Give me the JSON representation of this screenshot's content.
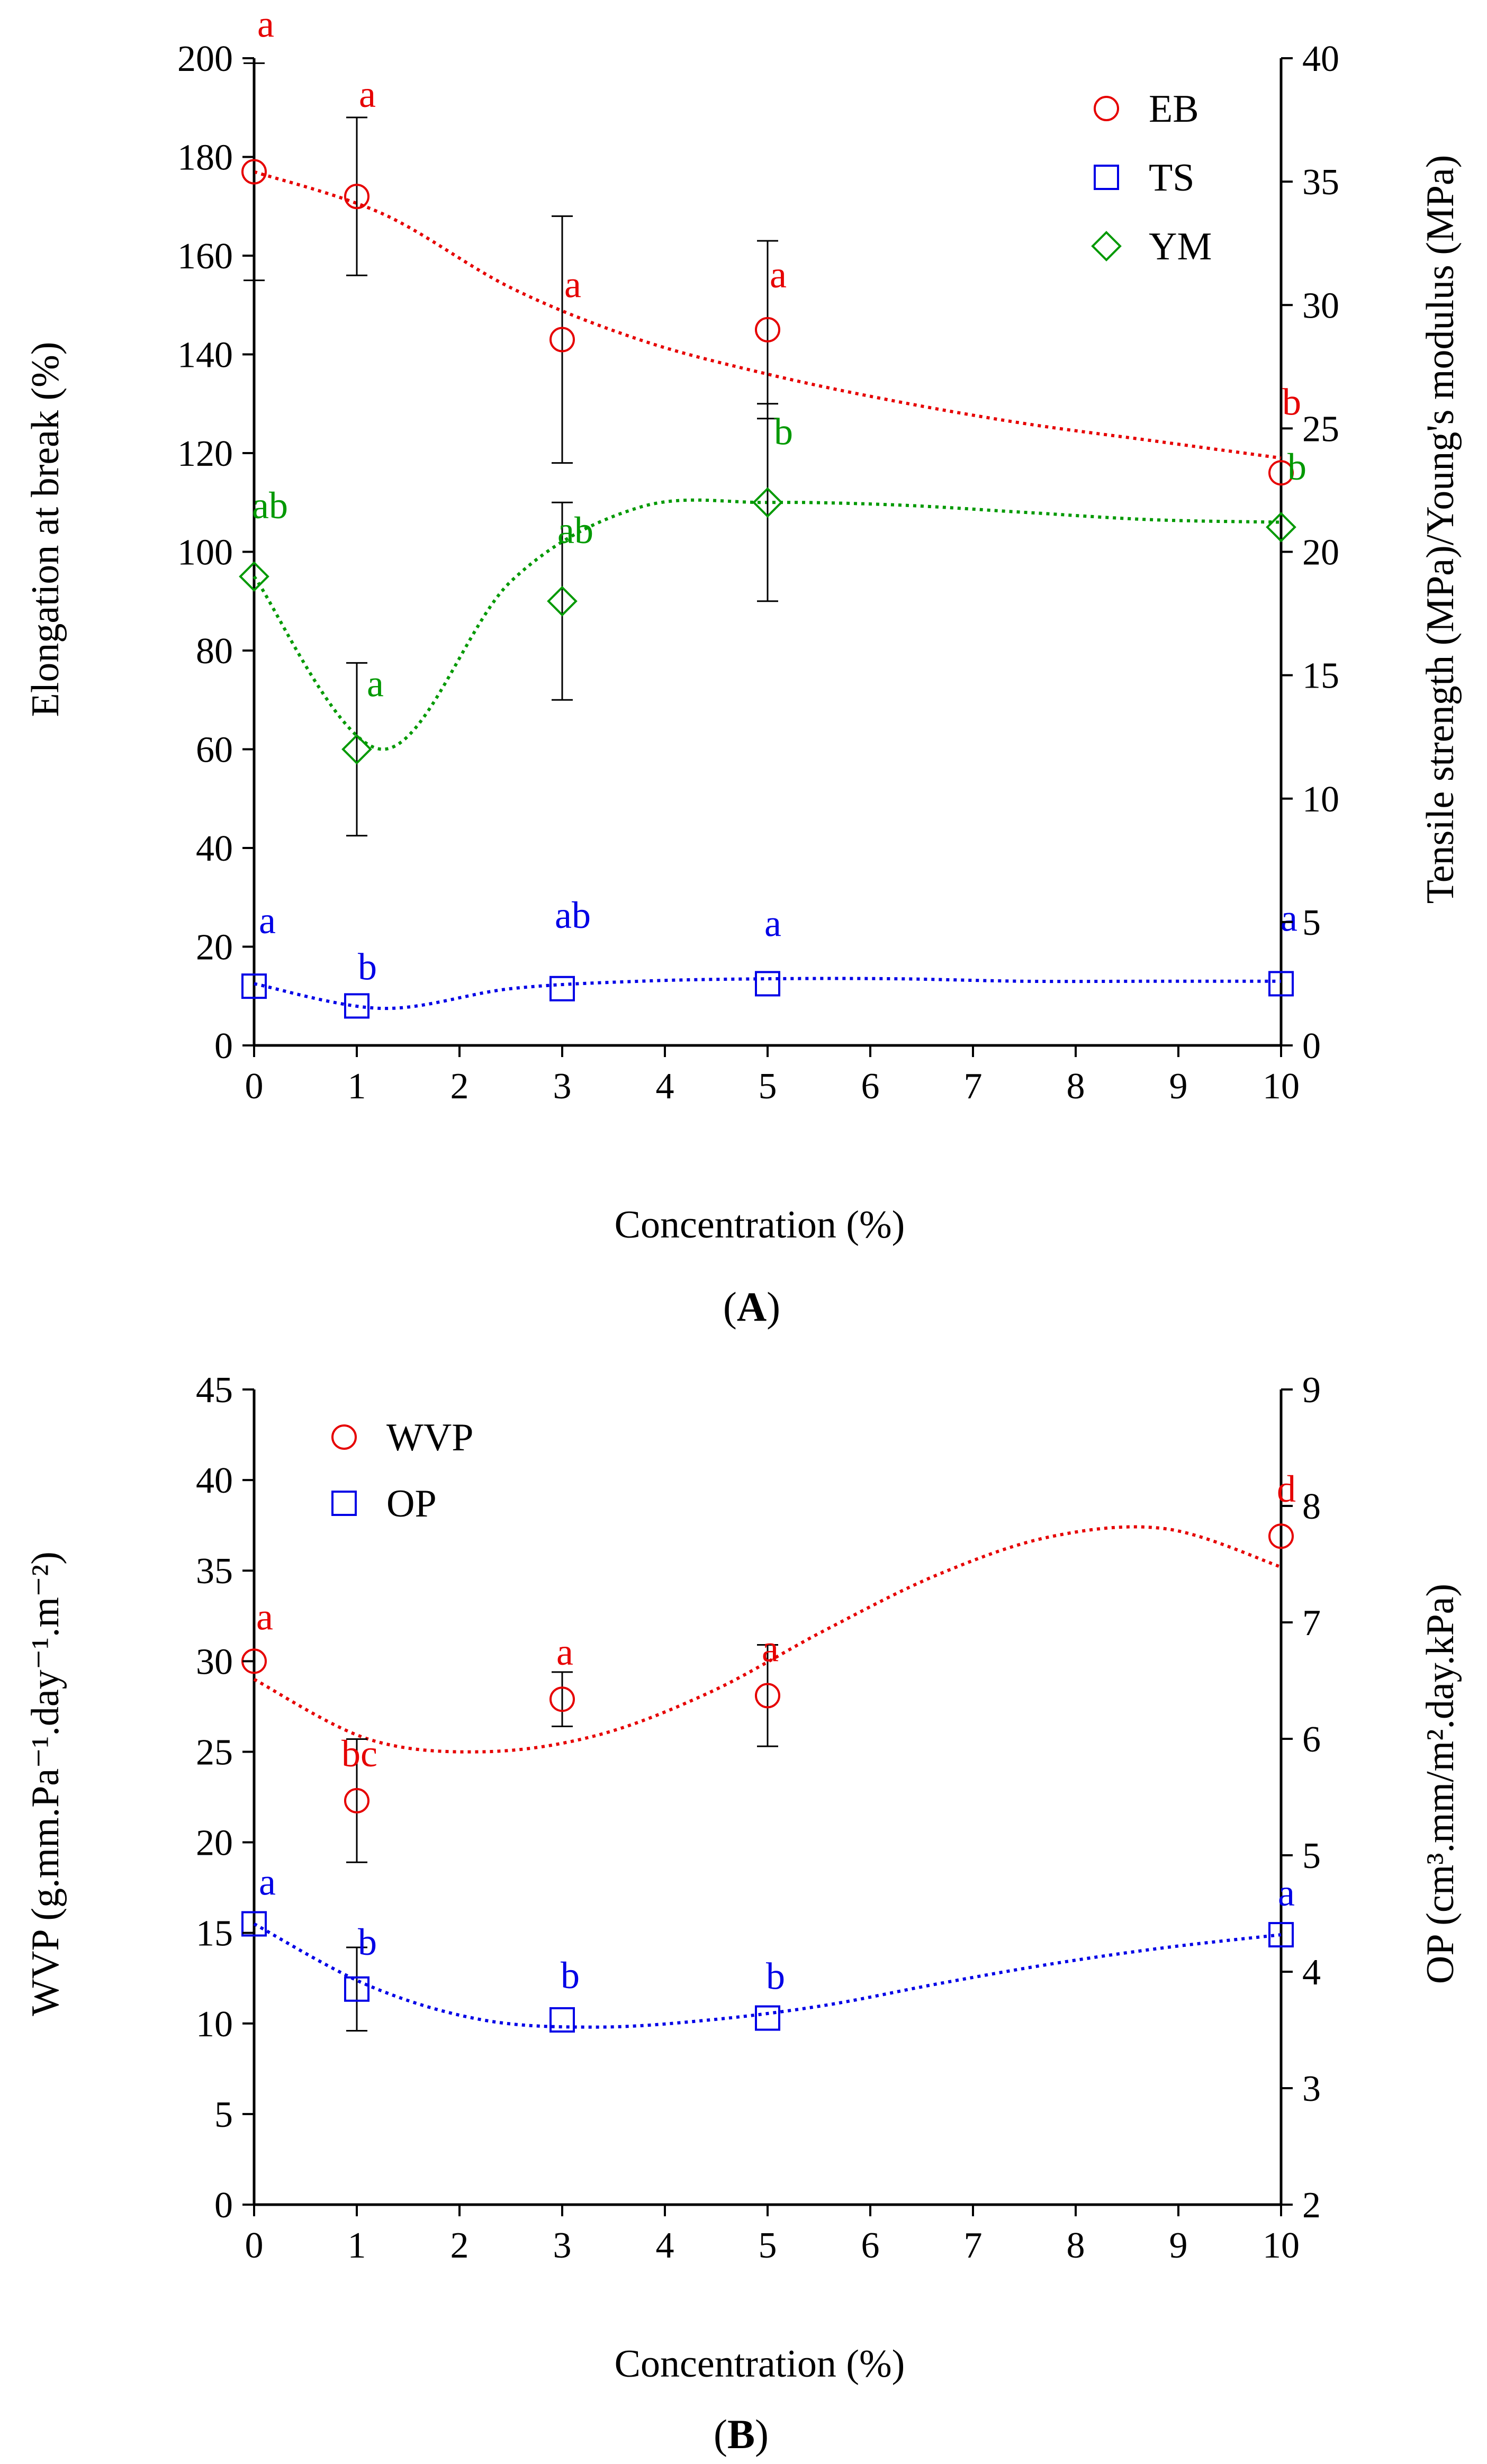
{
  "chart_data": [
    {
      "type": "line",
      "panel": "(A)",
      "panel_letter": "A",
      "xlabel": "Concentration (%)",
      "ylabel_left": "Elongation at break (%)",
      "ylabel_right": "Tensile strength (MPa)/Young's modulus (MPa)",
      "x_categories": [
        0,
        1,
        3,
        5,
        10
      ],
      "x_ticks": [
        "0",
        "1",
        "2",
        "3",
        "4",
        "5",
        "6",
        "7",
        "8",
        "9",
        "10"
      ],
      "ylim_left": [
        0,
        200
      ],
      "y_ticks_left": [
        "0",
        "20",
        "40",
        "60",
        "80",
        "100",
        "120",
        "140",
        "160",
        "180",
        "200"
      ],
      "ylim_right": [
        0,
        40
      ],
      "y_ticks_right": [
        "0",
        "5",
        "10",
        "15",
        "20",
        "25",
        "30",
        "35",
        "40"
      ],
      "legend": [
        "EB",
        "TS",
        "YM"
      ],
      "series": [
        {
          "name": "EB",
          "axis": "left",
          "color": "#e60000",
          "marker": "circle",
          "values": [
            177,
            172,
            143,
            145,
            116
          ],
          "errors": [
            22,
            16,
            25,
            18,
            0
          ],
          "fit": [
            177,
            168.5,
            153.5,
            143,
            136,
            130.5,
            126,
            122.5,
            119
          ],
          "letters": [
            "a",
            "a",
            "a",
            "a",
            "b"
          ]
        },
        {
          "name": "TS",
          "axis": "right",
          "color": "#0000e6",
          "marker": "square",
          "values": [
            2.4,
            1.6,
            2.3,
            2.5,
            2.5
          ],
          "errors": [
            0,
            0,
            0,
            0,
            0
          ],
          "fit": [
            2.5,
            1.5,
            2.3,
            2.6,
            2.7,
            2.7,
            2.6,
            2.6,
            2.6
          ],
          "letters": [
            "a",
            "b",
            "ab",
            "a",
            "a"
          ]
        },
        {
          "name": "YM",
          "axis": "right",
          "color": "#009900",
          "marker": "diamond",
          "values": [
            19,
            12,
            18,
            22,
            21
          ],
          "errors": [
            0,
            3.5,
            4,
            4,
            0
          ],
          "fit": [
            19,
            12,
            18.8,
            21.8,
            22,
            21.9,
            21.6,
            21.3,
            21.2
          ],
          "letters": [
            "ab",
            "a",
            "ab",
            "b",
            "b"
          ]
        }
      ]
    },
    {
      "type": "line",
      "panel": "(B)",
      "panel_letter": "B",
      "xlabel": "Concentration (%)",
      "ylabel_left": "WVP (g.mm.Pa⁻¹.day⁻¹.m⁻²)",
      "ylabel_right": "OP (cm³.mm/m².day.kPa)",
      "x_categories": [
        0,
        1,
        3,
        5,
        10
      ],
      "x_ticks": [
        "0",
        "1",
        "2",
        "3",
        "4",
        "5",
        "6",
        "7",
        "8",
        "9",
        "10"
      ],
      "ylim_left": [
        0,
        45
      ],
      "y_ticks_left": [
        "0",
        "5",
        "10",
        "15",
        "20",
        "25",
        "30",
        "35",
        "40",
        "45"
      ],
      "ylim_right": [
        2,
        9
      ],
      "y_ticks_right": [
        "2",
        "3",
        "4",
        "5",
        "6",
        "7",
        "8",
        "9"
      ],
      "legend": [
        "WVP",
        "OP"
      ],
      "series": [
        {
          "name": "WVP",
          "axis": "left",
          "color": "#e60000",
          "marker": "circle",
          "values": [
            30,
            22.3,
            27.9,
            28.1,
            36.9
          ],
          "errors": [
            0,
            3.4,
            1.5,
            2.8,
            0
          ],
          "fit": [
            29,
            25.7,
            25,
            25.9,
            28.3,
            31.7,
            34.8,
            36.9,
            37.3,
            35.2
          ],
          "letters": [
            "a",
            "bc",
            "a",
            "a",
            "d"
          ]
        },
        {
          "name": "OP",
          "axis": "left",
          "color": "#0000e6",
          "marker": "square",
          "values": [
            15.5,
            11.9,
            10.2,
            10.3,
            14.9
          ],
          "errors": [
            0,
            2.3,
            0,
            0,
            0
          ],
          "fit": [
            15.5,
            12.1,
            10.2,
            9.8,
            10.2,
            11.0,
            12.2,
            13.3,
            14.2,
            14.9
          ],
          "letters": [
            "a",
            "b",
            "b",
            "b",
            "a"
          ]
        }
      ]
    }
  ]
}
